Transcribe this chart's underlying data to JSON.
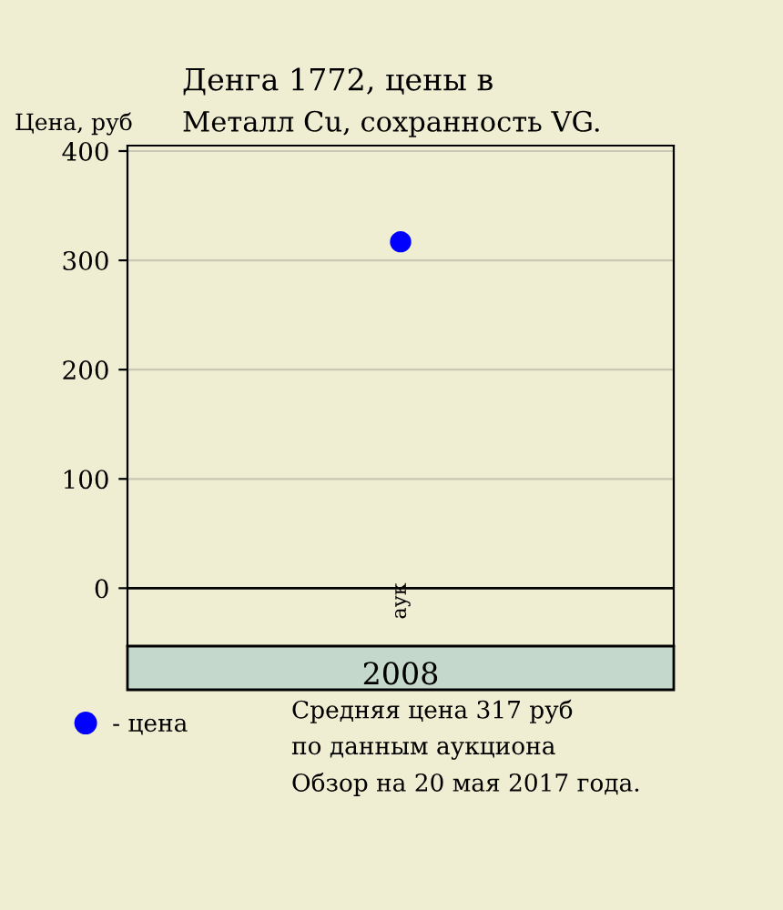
{
  "chart_data": {
    "type": "scatter",
    "title": "Денга 1772, цены в",
    "subtitle": "Металл Cu, сохранность VG.",
    "ylabel": "Цена, руб",
    "categories": [
      "2008"
    ],
    "series": [
      {
        "name": "- цена",
        "color": "#0000ff",
        "values": [
          317
        ]
      }
    ],
    "ylim": [
      -53,
      405
    ],
    "yticks": [
      0,
      100,
      200,
      300,
      400
    ],
    "grid": "y",
    "marker": "circle",
    "legend": "bottom left",
    "ref_lines": [
      {
        "axis": "y",
        "value": 0,
        "color": "#000000"
      }
    ],
    "annotations": [
      "аук",
      "Средняя цена 317 руб",
      "по данным аукциона",
      "Обзор на 20 мая 2017 года."
    ]
  }
}
